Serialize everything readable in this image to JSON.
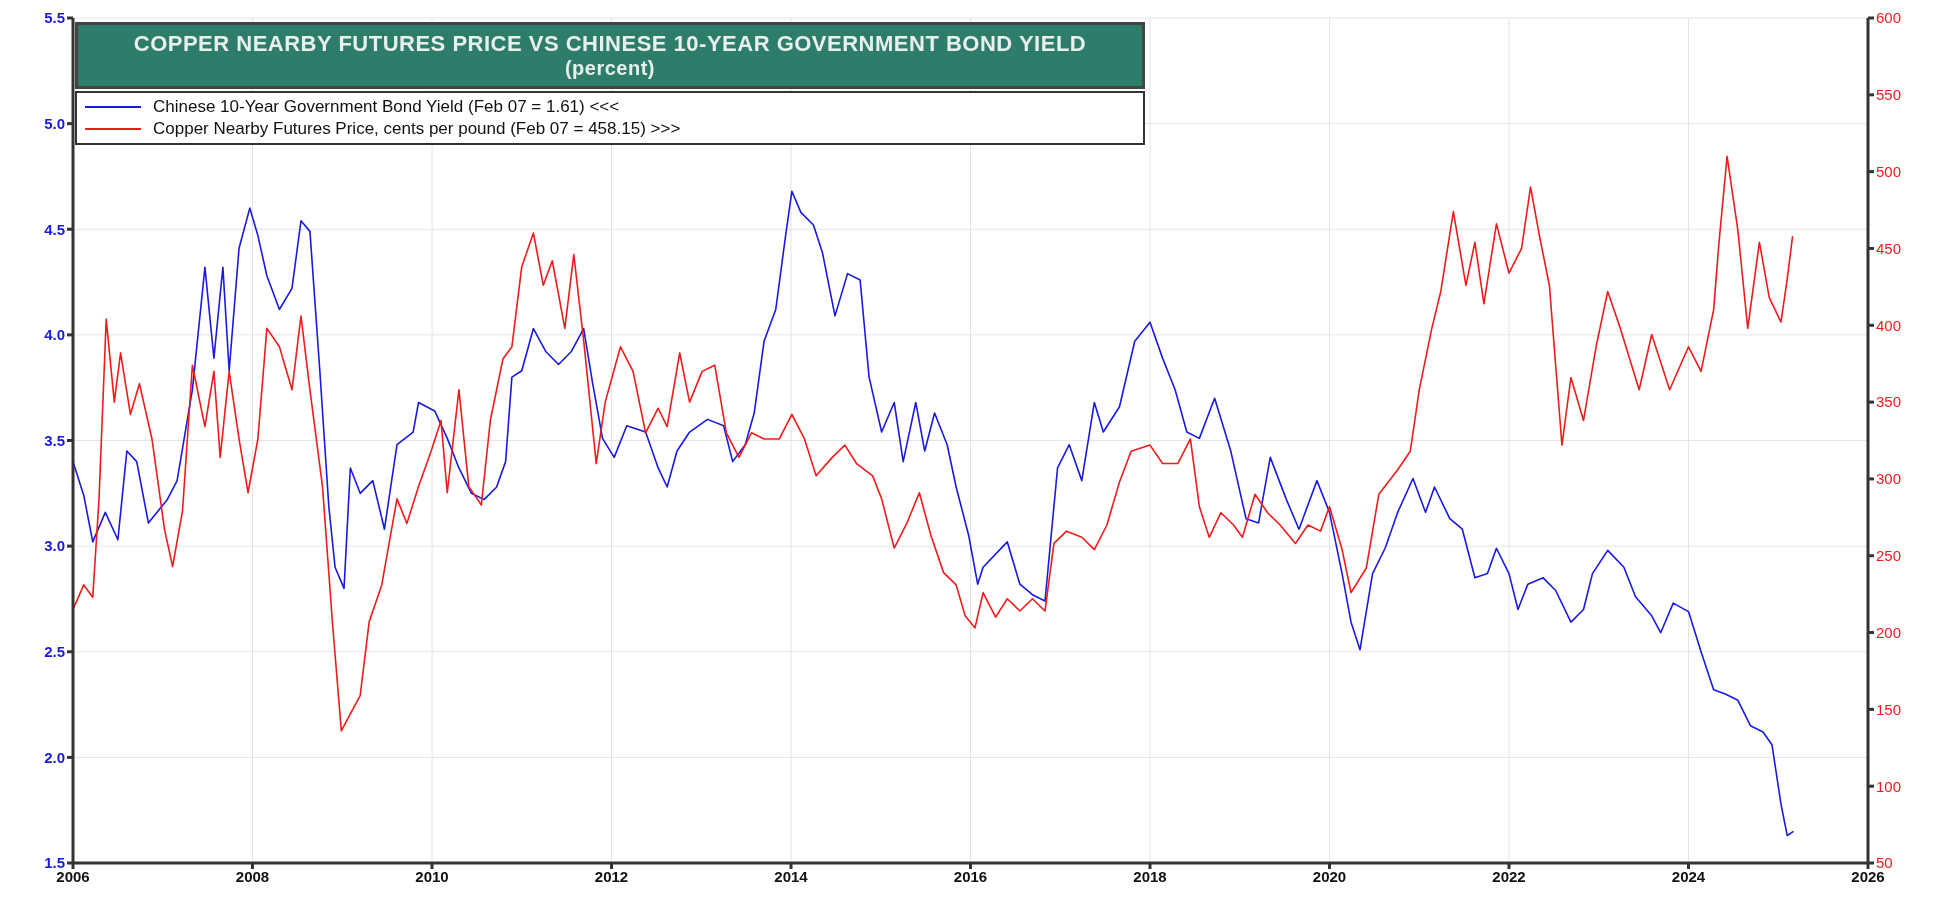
{
  "chart_data": {
    "type": "line",
    "title": "COPPER NEARBY FUTURES PRICE VS CHINESE 10-YEAR GOVERNMENT BOND YIELD",
    "subtitle": "(percent)",
    "xlim": [
      2006,
      2026
    ],
    "xticks": [
      2006,
      2008,
      2010,
      2012,
      2014,
      2016,
      2018,
      2020,
      2022,
      2024,
      2026
    ],
    "ylim": [
      1.5,
      5.5
    ],
    "yticks": [
      1.5,
      {
        "value": 2,
        "label": "2.0"
      },
      2.5,
      {
        "value": 3,
        "label": "3.0"
      },
      3.5,
      {
        "value": 4,
        "label": "4.0"
      },
      4.5,
      {
        "value": 5,
        "label": "5.0"
      },
      5.5
    ],
    "y2lim": [
      50,
      600
    ],
    "y2ticks": [
      50,
      100,
      150,
      200,
      250,
      300,
      350,
      400,
      450,
      500,
      550,
      600
    ],
    "grid": true,
    "legend": "top left",
    "marker": "none",
    "line_style": "solid",
    "series": [
      {
        "name": "Chinese 10-Year Government Bond Yield (Feb 07 = 1.61) <<<",
        "color": "#1a1adf",
        "axis": "y",
        "x": [
          2006.0,
          2006.12,
          2006.22,
          2006.36,
          2006.5,
          2006.6,
          2006.71,
          2006.84,
          2007.05,
          2007.16,
          2007.33,
          2007.47,
          2007.57,
          2007.67,
          2007.74,
          2007.85,
          2007.97,
          2008.06,
          2008.16,
          2008.3,
          2008.44,
          2008.54,
          2008.64,
          2008.75,
          2008.85,
          2008.92,
          2009.02,
          2009.09,
          2009.2,
          2009.34,
          2009.47,
          2009.61,
          2009.79,
          2009.85,
          2010.03,
          2010.17,
          2010.3,
          2010.44,
          2010.58,
          2010.72,
          2010.82,
          2010.89,
          2011.0,
          2011.13,
          2011.27,
          2011.41,
          2011.55,
          2011.69,
          2011.79,
          2011.9,
          2012.03,
          2012.17,
          2012.38,
          2012.52,
          2012.62,
          2012.73,
          2012.87,
          2013.07,
          2013.25,
          2013.35,
          2013.49,
          2013.59,
          2013.7,
          2013.83,
          2013.94,
          2014.01,
          2014.11,
          2014.25,
          2014.35,
          2014.49,
          2014.63,
          2014.77,
          2014.87,
          2015.01,
          2015.15,
          2015.25,
          2015.39,
          2015.49,
          2015.6,
          2015.74,
          2015.84,
          2015.98,
          2016.08,
          2016.14,
          2016.41,
          2016.55,
          2016.69,
          2016.83,
          2016.97,
          2017.1,
          2017.24,
          2017.38,
          2017.48,
          2017.66,
          2017.83,
          2018.0,
          2018.14,
          2018.28,
          2018.41,
          2018.55,
          2018.72,
          2018.9,
          2019.07,
          2019.21,
          2019.34,
          2019.52,
          2019.66,
          2019.86,
          2020.0,
          2020.14,
          2020.24,
          2020.34,
          2020.48,
          2020.62,
          2020.76,
          2020.93,
          2021.07,
          2021.17,
          2021.34,
          2021.48,
          2021.62,
          2021.76,
          2021.86,
          2022.0,
          2022.1,
          2022.21,
          2022.38,
          2022.52,
          2022.69,
          2022.83,
          2022.93,
          2023.1,
          2023.28,
          2023.41,
          2023.59,
          2023.69,
          2023.83,
          2024.0,
          2024.14,
          2024.28,
          2024.41,
          2024.55,
          2024.69,
          2024.83,
          2024.93,
          2025.03,
          2025.1,
          2025.17
        ],
        "values": [
          3.4,
          3.24,
          3.02,
          3.16,
          3.03,
          3.45,
          3.4,
          3.11,
          3.22,
          3.31,
          3.74,
          4.32,
          3.89,
          4.32,
          3.83,
          4.41,
          4.6,
          4.47,
          4.28,
          4.12,
          4.22,
          4.54,
          4.49,
          3.83,
          3.19,
          2.9,
          2.8,
          3.37,
          3.25,
          3.31,
          3.08,
          3.48,
          3.54,
          3.68,
          3.64,
          3.51,
          3.37,
          3.25,
          3.22,
          3.28,
          3.4,
          3.8,
          3.83,
          4.03,
          3.92,
          3.86,
          3.92,
          4.03,
          3.77,
          3.51,
          3.42,
          3.57,
          3.54,
          3.37,
          3.28,
          3.45,
          3.54,
          3.6,
          3.57,
          3.4,
          3.48,
          3.63,
          3.97,
          4.12,
          4.47,
          4.68,
          4.58,
          4.52,
          4.39,
          4.09,
          4.29,
          4.26,
          3.8,
          3.54,
          3.68,
          3.4,
          3.68,
          3.45,
          3.63,
          3.48,
          3.28,
          3.05,
          2.82,
          2.9,
          3.02,
          2.82,
          2.77,
          2.74,
          3.37,
          3.48,
          3.31,
          3.68,
          3.54,
          3.66,
          3.97,
          4.06,
          3.89,
          3.74,
          3.54,
          3.51,
          3.7,
          3.45,
          3.13,
          3.11,
          3.42,
          3.22,
          3.08,
          3.31,
          3.16,
          2.87,
          2.64,
          2.51,
          2.87,
          2.99,
          3.16,
          3.32,
          3.16,
          3.28,
          3.13,
          3.08,
          2.85,
          2.87,
          2.99,
          2.87,
          2.7,
          2.82,
          2.85,
          2.79,
          2.64,
          2.7,
          2.87,
          2.98,
          2.9,
          2.76,
          2.67,
          2.59,
          2.73,
          2.69,
          2.5,
          2.32,
          2.3,
          2.27,
          2.15,
          2.12,
          2.06,
          1.78,
          1.63,
          1.65
        ]
      },
      {
        "name": "Copper Nearby Futures Price, cents per pound (Feb 07 = 458.15) >>>",
        "color": "#ee1c1c",
        "axis": "y2",
        "x": [
          2006.0,
          2006.12,
          2006.22,
          2006.29,
          2006.37,
          2006.46,
          2006.53,
          2006.64,
          2006.74,
          2006.88,
          2007.02,
          2007.11,
          2007.22,
          2007.33,
          2007.47,
          2007.57,
          2007.64,
          2007.74,
          2007.85,
          2007.95,
          2008.06,
          2008.16,
          2008.3,
          2008.44,
          2008.54,
          2008.64,
          2008.78,
          2008.89,
          2008.99,
          2009.09,
          2009.2,
          2009.3,
          2009.44,
          2009.61,
          2009.72,
          2009.85,
          2009.99,
          2010.1,
          2010.17,
          2010.3,
          2010.41,
          2010.55,
          2010.65,
          2010.79,
          2010.89,
          2011.0,
          2011.13,
          2011.24,
          2011.34,
          2011.48,
          2011.58,
          2011.69,
          2011.83,
          2011.93,
          2012.1,
          2012.24,
          2012.38,
          2012.52,
          2012.62,
          2012.76,
          2012.87,
          2013.01,
          2013.15,
          2013.28,
          2013.42,
          2013.56,
          2013.7,
          2013.87,
          2014.01,
          2014.15,
          2014.28,
          2014.46,
          2014.6,
          2014.73,
          2014.91,
          2015.01,
          2015.15,
          2015.29,
          2015.43,
          2015.56,
          2015.7,
          2015.84,
          2015.94,
          2016.05,
          2016.14,
          2016.28,
          2016.41,
          2016.55,
          2016.69,
          2016.83,
          2016.93,
          2017.07,
          2017.24,
          2017.38,
          2017.52,
          2017.66,
          2017.79,
          2018.0,
          2018.14,
          2018.31,
          2018.45,
          2018.55,
          2018.66,
          2018.79,
          2018.93,
          2019.03,
          2019.17,
          2019.31,
          2019.45,
          2019.62,
          2019.76,
          2019.9,
          2020.0,
          2020.14,
          2020.24,
          2020.41,
          2020.55,
          2020.76,
          2020.9,
          2021.0,
          2021.14,
          2021.24,
          2021.38,
          2021.52,
          2021.62,
          2021.72,
          2021.86,
          2022.0,
          2022.14,
          2022.24,
          2022.34,
          2022.45,
          2022.52,
          2022.59,
          2022.69,
          2022.83,
          2022.97,
          2023.1,
          2023.24,
          2023.45,
          2023.59,
          2023.79,
          2024.0,
          2024.14,
          2024.28,
          2024.34,
          2024.43,
          2024.55,
          2024.66,
          2024.79,
          2024.9,
          2025.03,
          2025.1,
          2025.16
        ],
        "values": [
          215,
          231,
          223,
          287,
          404,
          350,
          382,
          342,
          362,
          326,
          267,
          243,
          279,
          374,
          334,
          370,
          314,
          370,
          326,
          291,
          326,
          398,
          386,
          358,
          406,
          358,
          295,
          207,
          136,
          147,
          159,
          207,
          231,
          287,
          271,
          295,
          318,
          338,
          291,
          358,
          295,
          283,
          338,
          378,
          386,
          438,
          460,
          426,
          442,
          398,
          446,
          390,
          310,
          350,
          386,
          370,
          330,
          346,
          334,
          382,
          350,
          370,
          374,
          330,
          314,
          330,
          326,
          326,
          342,
          326,
          302,
          314,
          322,
          310,
          302,
          287,
          255,
          271,
          291,
          263,
          239,
          231,
          211,
          203,
          226,
          210,
          222,
          214,
          222,
          214,
          258,
          266,
          262,
          254,
          270,
          298,
          318,
          322,
          310,
          310,
          326,
          282,
          262,
          278,
          270,
          262,
          290,
          278,
          270,
          258,
          270,
          266,
          282,
          254,
          226,
          242,
          290,
          306,
          318,
          358,
          398,
          422,
          474,
          426,
          454,
          414,
          466,
          434,
          450,
          490,
          458,
          426,
          374,
          322,
          366,
          338,
          386,
          422,
          398,
          358,
          394,
          358,
          386,
          370,
          410,
          454,
          510,
          462,
          398,
          454,
          418,
          402,
          430,
          458
        ]
      }
    ]
  }
}
